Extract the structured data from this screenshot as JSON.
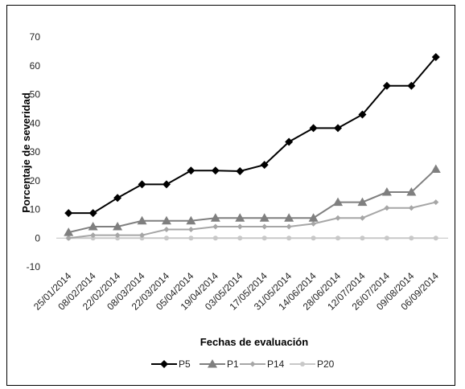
{
  "chart_data": {
    "type": "line",
    "title": "",
    "xlabel": "Fechas de evaluación",
    "ylabel": "Porcentaje de severidad",
    "ylim": [
      -10,
      70
    ],
    "yticks": [
      -10,
      0,
      10,
      20,
      30,
      40,
      50,
      60,
      70
    ],
    "grid": false,
    "legend_position": "bottom",
    "categories": [
      "25/01/2014",
      "08/02/2014",
      "22/02/2014",
      "08/03/2014",
      "22/03/2014",
      "05/04/2014",
      "19/04/2014",
      "03/05/2014",
      "17/05/2014",
      "31/05/2014",
      "14/06/2014",
      "28/06/2014",
      "12/07/2014",
      "26/07/2014",
      "09/08/2014",
      "06/09/2014"
    ],
    "series": [
      {
        "name": "P5",
        "color": "#000000",
        "marker": "diamond",
        "values": [
          8.7,
          8.7,
          14,
          18.7,
          18.7,
          23.5,
          23.5,
          23.3,
          25.5,
          33.5,
          38.3,
          38.3,
          43,
          53,
          53,
          63
        ]
      },
      {
        "name": "P1",
        "color": "#7f7f7f",
        "marker": "triangle",
        "values": [
          2,
          4,
          4,
          6,
          6,
          6,
          7,
          7,
          7,
          7,
          7,
          12.5,
          12.5,
          16,
          16,
          24
        ]
      },
      {
        "name": "P14",
        "color": "#a6a6a6",
        "marker": "small-diamond",
        "values": [
          0,
          1,
          1,
          1,
          3,
          3,
          4,
          4,
          4,
          4,
          5,
          7,
          7,
          10.5,
          10.5,
          12.5
        ]
      },
      {
        "name": "P20",
        "color": "#c8c8c8",
        "marker": "circle",
        "values": [
          0,
          0,
          0,
          0,
          0,
          0,
          0,
          0,
          0,
          0,
          0,
          0,
          0,
          0,
          0,
          0
        ]
      }
    ]
  }
}
